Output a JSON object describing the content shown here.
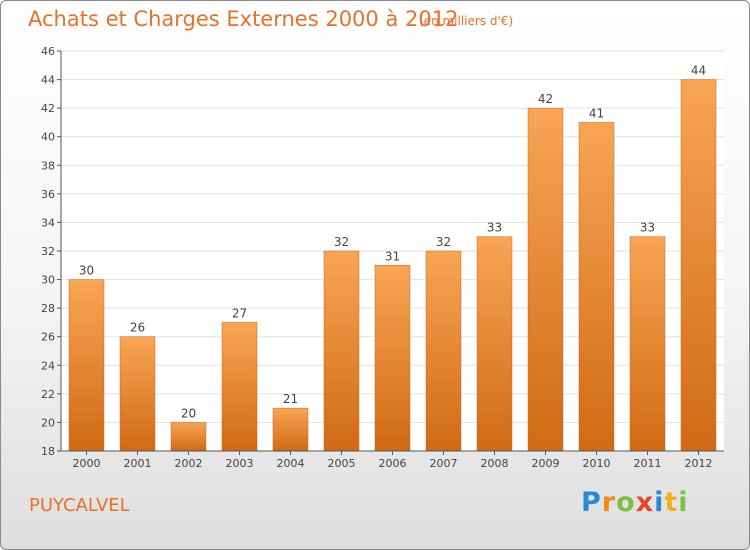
{
  "header": {
    "title": "Achats et Charges Externes 2000 à 2012",
    "subtitle": "(en milliers d'€)"
  },
  "footer": {
    "commune": "PUYCALVEL",
    "brand_letters": [
      {
        "ch": "P",
        "color": "#2a8ad2"
      },
      {
        "ch": "r",
        "color": "#f28a1a"
      },
      {
        "ch": "o",
        "color": "#7cc142"
      },
      {
        "ch": "x",
        "color": "#e8442a"
      },
      {
        "ch": "i",
        "color": "#2a8ad2"
      },
      {
        "ch": "t",
        "color": "#f2b11a"
      },
      {
        "ch": "i",
        "color": "#7cc142"
      }
    ]
  },
  "colors": {
    "accent": "#e8702a",
    "bar_top": "#f8a555",
    "bar_bottom": "#d06a14",
    "grid": "#e2e2e2",
    "axis": "#555555"
  },
  "chart_data": {
    "type": "bar",
    "categories": [
      "2000",
      "2001",
      "2002",
      "2003",
      "2004",
      "2005",
      "2006",
      "2007",
      "2008",
      "2009",
      "2010",
      "2011",
      "2012"
    ],
    "values": [
      30,
      26,
      20,
      27,
      21,
      32,
      31,
      32,
      33,
      42,
      41,
      33,
      44
    ],
    "ylim": [
      18,
      46
    ],
    "yticks": [
      18,
      20,
      22,
      24,
      26,
      28,
      30,
      32,
      34,
      36,
      38,
      40,
      42,
      44,
      46
    ],
    "grid": true,
    "data_labels": true
  }
}
